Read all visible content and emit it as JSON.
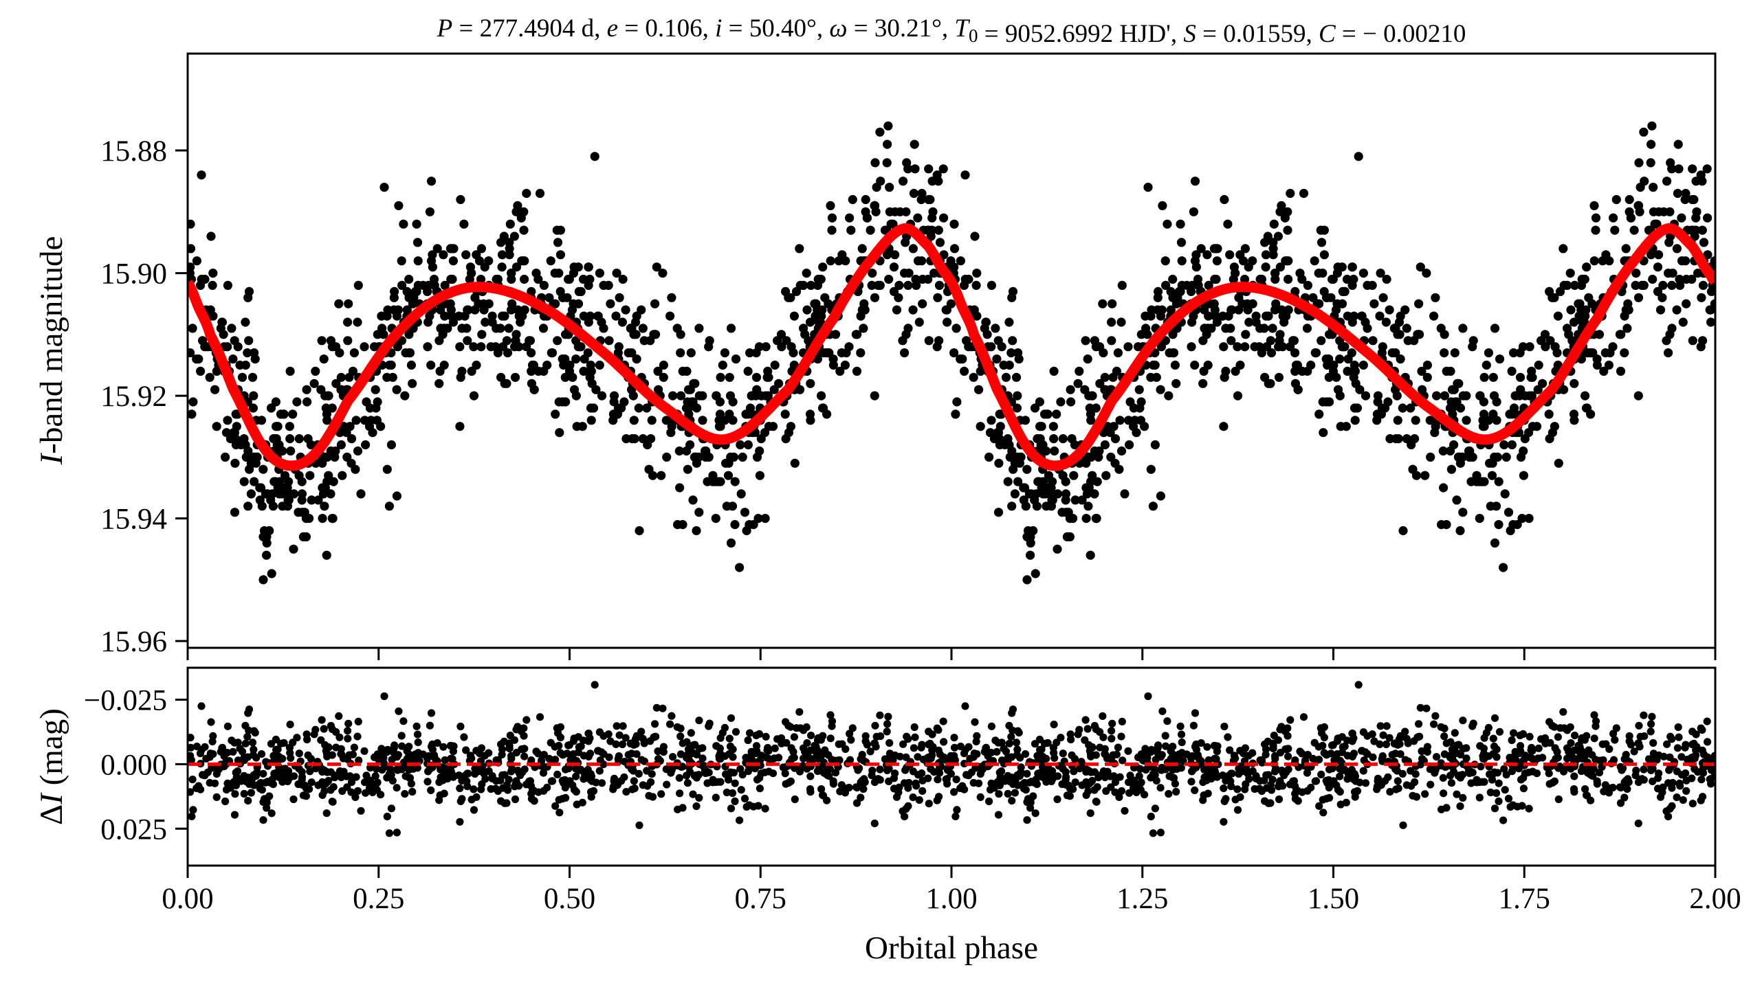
{
  "chart_data": [
    {
      "panel": "light-curve",
      "type": "scatter",
      "title_parts": [
        {
          "t": "P",
          "i": true
        },
        {
          "t": " = 277.4904 d, "
        },
        {
          "t": "e",
          "i": true
        },
        {
          "t": " = 0.106, "
        },
        {
          "t": "i",
          "i": true
        },
        {
          "t": " = 50.40°, "
        },
        {
          "t": "ω",
          "i": true
        },
        {
          "t": " = 30.21°, "
        },
        {
          "t": "T",
          "i": true
        },
        {
          "t": "0",
          "sub": true
        },
        {
          "t": " = 9052.6992 HJD', "
        },
        {
          "t": "S",
          "i": true
        },
        {
          "t": " = 0.01559, "
        },
        {
          "t": "C",
          "i": true
        },
        {
          "t": " = − 0.00210"
        }
      ],
      "title": "P = 277.4904 d, e = 0.106, i = 50.40°, ω = 30.21°, T0 = 9052.6992 HJD', S = 0.01559, C = − 0.00210",
      "ylabel_parts": [
        {
          "t": "I",
          "i": true
        },
        {
          "t": "-band magnitude"
        }
      ],
      "ylabel": "I-band magnitude",
      "xlim": [
        0,
        2
      ],
      "ylim": [
        15.9611,
        15.8642
      ],
      "y_inverted": true,
      "yticks": [
        "15.88",
        "15.90",
        "15.92",
        "15.94",
        "15.96"
      ],
      "ytick_values": [
        15.88,
        15.9,
        15.92,
        15.94,
        15.96
      ],
      "xtick_values": [
        0,
        0.25,
        0.5,
        0.75,
        1.0,
        1.25,
        1.5,
        1.75,
        2.0
      ],
      "series": [
        {
          "name": "observations",
          "kind": "points",
          "color": "#000000",
          "n_per_cycle": 1050,
          "magnitude_step": 0.001,
          "scatter_sigma": 0.0085,
          "repeats_every_phase": 1.0
        },
        {
          "name": "model",
          "kind": "line",
          "color": "#ff0000",
          "phase": [
            0.0,
            0.014,
            0.03,
            0.06,
            0.1,
            0.134,
            0.17,
            0.21,
            0.27,
            0.33,
            0.39,
            0.464,
            0.545,
            0.626,
            0.704,
            0.786,
            0.846,
            0.887,
            0.936,
            0.969,
            0.994,
            1.0
          ],
          "magnitude": [
            15.9015,
            15.9055,
            15.9102,
            15.919,
            15.9285,
            15.9314,
            15.929,
            15.9208,
            15.9104,
            15.904,
            15.9023,
            15.9055,
            15.913,
            15.922,
            15.9271,
            15.919,
            15.9073,
            15.899,
            15.8928,
            15.8955,
            15.9003,
            15.9015
          ]
        }
      ]
    },
    {
      "panel": "residuals",
      "type": "scatter",
      "ylabel_parts": [
        {
          "t": "Δ"
        },
        {
          "t": "I",
          "i": true
        },
        {
          "t": " (mag)"
        }
      ],
      "ylabel": "ΔI (mag)",
      "xlabel": "Orbital phase",
      "xlim": [
        0,
        2
      ],
      "ylim": [
        0.0393,
        -0.0374
      ],
      "y_inverted": true,
      "yticks": [
        "−0.025",
        "0.000",
        "0.025"
      ],
      "ytick_values": [
        -0.025,
        0.0,
        0.025
      ],
      "xticks": [
        "0.00",
        "0.25",
        "0.50",
        "0.75",
        "1.00",
        "1.25",
        "1.50",
        "1.75",
        "2.00"
      ],
      "xtick_values": [
        0,
        0.25,
        0.5,
        0.75,
        1.0,
        1.25,
        1.5,
        1.75,
        2.0
      ],
      "zero_line": {
        "value": 0.0,
        "color": "#ff0000",
        "style": "dashed"
      },
      "notable_points": [
        {
          "phase": 0.533,
          "residual": -0.0308
        },
        {
          "phase": 1.533,
          "residual": -0.0308
        },
        {
          "phase": 0.274,
          "residual": 0.0265
        },
        {
          "phase": 1.274,
          "residual": 0.0265
        }
      ]
    }
  ]
}
